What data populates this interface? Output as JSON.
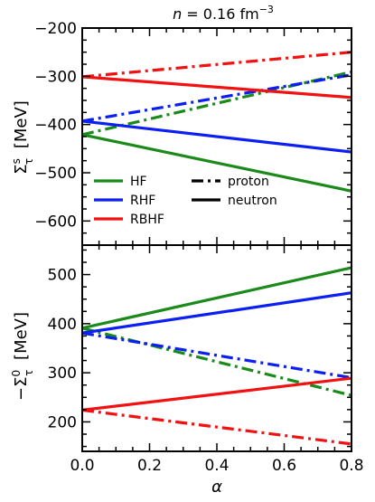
{
  "chart_data": [
    {
      "type": "line",
      "panel": "top",
      "title": "n = 0.16 fm^-3",
      "ylabel": "Σ_τ^s [MeV]",
      "xlim": [
        0.0,
        0.8
      ],
      "ylim": [
        -650,
        -200
      ],
      "yticks": [
        -600,
        -500,
        -400,
        -300,
        -200
      ],
      "grid": false,
      "legend": {
        "placement": "lower-left",
        "entries": [
          {
            "label": "HF",
            "color": "#1a8a1a",
            "style": "solid"
          },
          {
            "label": "RHF",
            "color": "#0b1ff2",
            "style": "solid"
          },
          {
            "label": "RBHF",
            "color": "#f21111",
            "style": "solid"
          },
          {
            "label": "proton",
            "color": "#000000",
            "style": "dashdot"
          },
          {
            "label": "neutron",
            "color": "#000000",
            "style": "solid"
          }
        ]
      },
      "series": [
        {
          "model": "HF",
          "particle": "neutron",
          "color": "#1a8a1a",
          "x": [
            0.0,
            0.8
          ],
          "y": [
            -421,
            -538
          ]
        },
        {
          "model": "HF",
          "particle": "proton",
          "color": "#1a8a1a",
          "x": [
            0.0,
            0.8
          ],
          "y": [
            -421,
            -291
          ]
        },
        {
          "model": "RHF",
          "particle": "neutron",
          "color": "#0b1ff2",
          "x": [
            0.0,
            0.8
          ],
          "y": [
            -393,
            -457
          ]
        },
        {
          "model": "RHF",
          "particle": "proton",
          "color": "#0b1ff2",
          "x": [
            0.0,
            0.8
          ],
          "y": [
            -393,
            -297
          ]
        },
        {
          "model": "RBHF",
          "particle": "neutron",
          "color": "#f21111",
          "x": [
            0.0,
            0.8
          ],
          "y": [
            -301,
            -344
          ]
        },
        {
          "model": "RBHF",
          "particle": "proton",
          "color": "#f21111",
          "x": [
            0.0,
            0.8
          ],
          "y": [
            -301,
            -250
          ]
        }
      ]
    },
    {
      "type": "line",
      "panel": "bottom",
      "xlabel": "α",
      "ylabel": "−Σ_τ^0 [MeV]",
      "xlim": [
        0.0,
        0.8
      ],
      "ylim": [
        140,
        560
      ],
      "xticks": [
        0.0,
        0.2,
        0.4,
        0.6,
        0.8
      ],
      "xtick_labels": [
        "0.0",
        "0.2",
        "0.4",
        "0.6",
        "0.8"
      ],
      "yticks": [
        200,
        300,
        400,
        500
      ],
      "grid": false,
      "series": [
        {
          "model": "HF",
          "particle": "neutron",
          "color": "#1a8a1a",
          "x": [
            0.0,
            0.8
          ],
          "y": [
            391,
            514
          ]
        },
        {
          "model": "HF",
          "particle": "proton",
          "color": "#1a8a1a",
          "x": [
            0.0,
            0.8
          ],
          "y": [
            391,
            254
          ]
        },
        {
          "model": "RHF",
          "particle": "neutron",
          "color": "#0b1ff2",
          "x": [
            0.0,
            0.8
          ],
          "y": [
            381,
            463
          ]
        },
        {
          "model": "RHF",
          "particle": "proton",
          "color": "#0b1ff2",
          "x": [
            0.0,
            0.8
          ],
          "y": [
            381,
            290
          ]
        },
        {
          "model": "RBHF",
          "particle": "neutron",
          "color": "#f21111",
          "x": [
            0.0,
            0.8
          ],
          "y": [
            224,
            289
          ]
        },
        {
          "model": "RBHF",
          "particle": "proton",
          "color": "#f21111",
          "x": [
            0.0,
            0.8
          ],
          "y": [
            224,
            155
          ]
        }
      ]
    }
  ]
}
